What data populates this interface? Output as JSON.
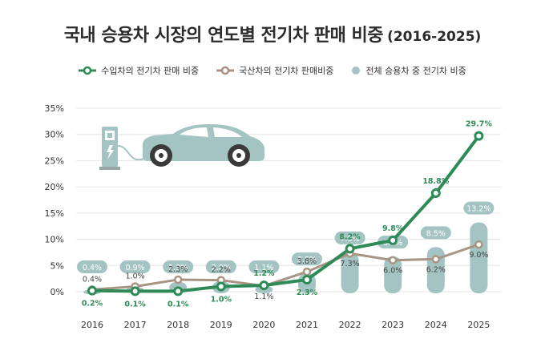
{
  "title": {
    "main": "국내 승용차 시장의 연도별 전기차 판매 비중",
    "sub": "(2016-2025)"
  },
  "legend": [
    {
      "label": "수입차의 전기차 판매 비중",
      "kind": "line-marker"
    },
    {
      "label": "국산차의 전기차 판매비중",
      "kind": "line-marker"
    },
    {
      "label": "전체 승용차 중 전기차 비중",
      "kind": "dot"
    }
  ],
  "colors": {
    "import": "#2e8b57",
    "domestic": "#a89483",
    "total": "#a3c4c3",
    "total_label_bg": "#a3c4c3",
    "grid": "#e6e6e6"
  },
  "icon": "ev-charging-car-icon",
  "chart_data": {
    "type": "line",
    "categories": [
      "2016",
      "2017",
      "2018",
      "2019",
      "2020",
      "2021",
      "2022",
      "2023",
      "2024",
      "2025"
    ],
    "yticks": [
      "0%",
      "5%",
      "10%",
      "15%",
      "20%",
      "25%",
      "30%",
      "35%"
    ],
    "ylim": [
      0,
      35
    ],
    "series": [
      {
        "name": "수입차의 전기차 판매 비중",
        "type": "line",
        "values": [
          0.2,
          0.1,
          0.1,
          1.0,
          1.2,
          2.3,
          8.2,
          9.8,
          18.8,
          29.7
        ],
        "labels": [
          "0.2%",
          "0.1%",
          "0.1%",
          "1.0%",
          "1.2%",
          "2.3%",
          "8.2%",
          "9.8%",
          "18.8%",
          "29.7%"
        ]
      },
      {
        "name": "국산차의 전기차 판매비중",
        "type": "line",
        "values": [
          0.4,
          1.0,
          2.3,
          2.2,
          1.1,
          3.8,
          7.3,
          6.0,
          6.2,
          9.0
        ],
        "labels": [
          "0.4%",
          "1.0%",
          "2.3%",
          "2.2%",
          "1.1%",
          "3.8%",
          "7.3%",
          "6.0%",
          "6.2%",
          "9.0%"
        ]
      },
      {
        "name": "전체 승용차 중 전기차 비중",
        "type": "bar",
        "values": [
          0.4,
          0.9,
          1.9,
          2.0,
          1.1,
          3.5,
          7.5,
          6.7,
          8.5,
          13.2
        ],
        "labels": [
          "0.4%",
          "0.9%",
          "1.9%",
          "2.0%",
          "1.1%",
          "3.5%",
          "7.5%",
          "6.7%",
          "8.5%",
          "13.2%"
        ]
      }
    ]
  }
}
